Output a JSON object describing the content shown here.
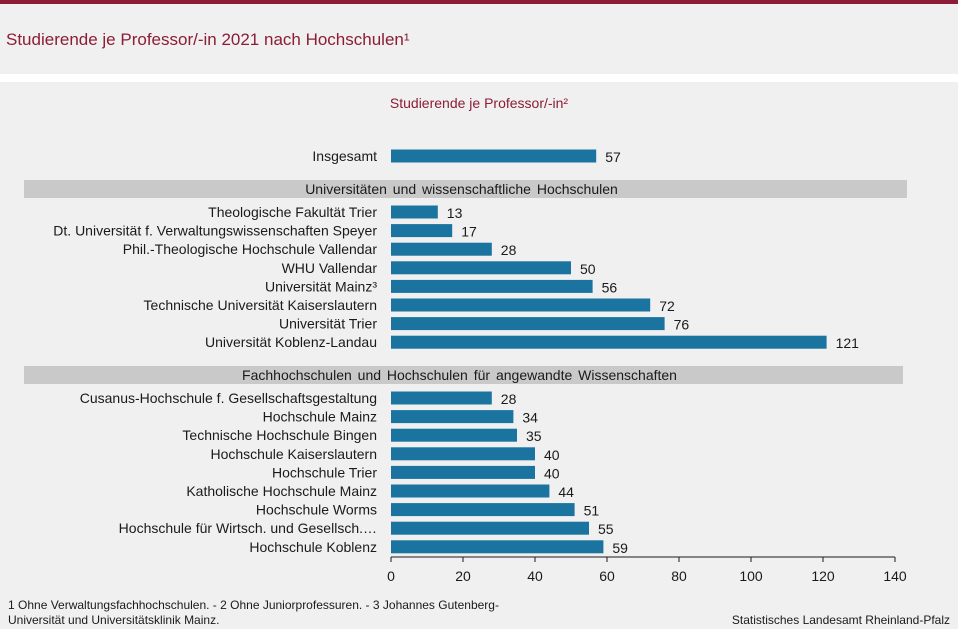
{
  "colors": {
    "accent": "#8c1d35",
    "bar": "#1b73a0",
    "group_band": "#c9c9c9",
    "background": "#f0f0f0"
  },
  "header": {
    "title": "Studierende je Professor/-in 2021 nach Hochschulen¹"
  },
  "chart_data": {
    "type": "bar",
    "orientation": "horizontal",
    "title": "Studierende je Professor/-in²",
    "xlim": [
      0,
      140
    ],
    "x_ticks": [
      "0",
      "20",
      "40",
      "60",
      "80",
      "100",
      "120",
      "140"
    ],
    "grid": false,
    "groups": [
      {
        "heading": "",
        "categories": [
          "Insgesamt"
        ],
        "values": [
          57
        ]
      },
      {
        "heading": "Universitäten und wissenschaftliche Hochschulen",
        "categories": [
          "Theologische Fakultät Trier",
          "Dt. Universität f. Verwaltungswissenschaften Speyer",
          "Phil.-Theologische Hochschule Vallendar",
          "WHU Vallendar",
          "Universität Mainz³",
          "Technische Universität Kaiserslautern",
          "Universität Trier",
          "Universität Koblenz-Landau"
        ],
        "values": [
          13,
          17,
          28,
          50,
          56,
          72,
          76,
          121
        ]
      },
      {
        "heading": "Fachhochschulen und Hochschulen für angewandte Wissenschaften",
        "categories": [
          "Cusanus-Hochschule f. Gesellschaftsgestaltung",
          "Hochschule Mainz",
          "Technische Hochschule Bingen",
          "Hochschule Kaiserslautern",
          "Hochschule Trier",
          "Katholische Hochschule Mainz",
          "Hochschule Worms",
          "Hochschule für Wirtsch. und Gesellsch.…",
          "Hochschule Koblenz"
        ],
        "values": [
          28,
          34,
          35,
          40,
          40,
          44,
          51,
          55,
          59
        ]
      }
    ]
  },
  "footnote": "1 Ohne Verwaltungsfachhochschulen.  - 2 Ohne Juniorprofessuren.  - 3 Johannes Gutenberg-Universität  und Universitätsklinik Mainz.",
  "source": "Statistisches Landesamt Rheinland-Pfalz"
}
